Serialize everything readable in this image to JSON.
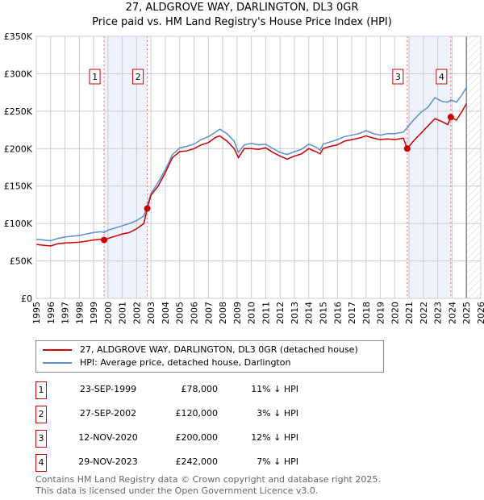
{
  "chart_data": {
    "type": "line",
    "title": "27, ALDGROVE WAY, DARLINGTON, DL3 0GR",
    "subtitle": "Price paid vs. HM Land Registry's House Price Index (HPI)",
    "xlim": [
      1995,
      2026
    ],
    "ylim": [
      0,
      350000
    ],
    "x_ticks": [
      "1995",
      "1996",
      "1997",
      "1998",
      "1999",
      "2000",
      "2001",
      "2002",
      "2003",
      "2004",
      "2005",
      "2006",
      "2007",
      "2008",
      "2009",
      "2010",
      "2011",
      "2012",
      "2013",
      "2014",
      "2015",
      "2016",
      "2017",
      "2018",
      "2019",
      "2020",
      "2021",
      "2022",
      "2023",
      "2024",
      "2025",
      "2026"
    ],
    "y_ticks": [
      {
        "v": 0,
        "l": "£0"
      },
      {
        "v": 50000,
        "l": "£50K"
      },
      {
        "v": 100000,
        "l": "£100K"
      },
      {
        "v": 150000,
        "l": "£150K"
      },
      {
        "v": 200000,
        "l": "£200K"
      },
      {
        "v": 250000,
        "l": "£250K"
      },
      {
        "v": 300000,
        "l": "£300K"
      },
      {
        "v": 350000,
        "l": "£350K"
      }
    ],
    "grid": true,
    "series": [
      {
        "name": "27, ALDGROVE WAY, DARLINGTON, DL3 0GR (detached house)",
        "color": "#cc0000",
        "x": [
          1995,
          1995.5,
          1996,
          1996.5,
          1997,
          1997.5,
          1998,
          1998.5,
          1999,
          1999.5,
          1999.73,
          2000,
          2000.5,
          2001,
          2001.5,
          2002,
          2002.5,
          2002.74,
          2003,
          2003.5,
          2004,
          2004.5,
          2005,
          2005.5,
          2006,
          2006.5,
          2007,
          2007.5,
          2007.8,
          2008.3,
          2008.8,
          2009.1,
          2009.5,
          2010,
          2010.5,
          2011,
          2011.5,
          2012,
          2012.5,
          2013,
          2013.5,
          2014,
          2014.5,
          2014.8,
          2015,
          2015.5,
          2016,
          2016.5,
          2017,
          2017.5,
          2018,
          2018.5,
          2019,
          2019.5,
          2020,
          2020.6,
          2020.87,
          2021.3,
          2021.8,
          2022.3,
          2022.8,
          2023.3,
          2023.7,
          2023.91,
          2024.3,
          2024.7,
          2025
        ],
        "y": [
          72000,
          71000,
          70000,
          73000,
          74000,
          74500,
          75000,
          76500,
          78000,
          79000,
          78000,
          80000,
          83000,
          86000,
          88000,
          93000,
          100000,
          120000,
          138000,
          150000,
          168000,
          188000,
          196000,
          197000,
          200000,
          205000,
          208000,
          215000,
          217000,
          210000,
          200000,
          188000,
          200000,
          200000,
          199000,
          201000,
          195000,
          190000,
          186000,
          190000,
          193000,
          200000,
          196000,
          193000,
          200000,
          203000,
          205000,
          210000,
          212000,
          214000,
          217000,
          214000,
          212000,
          213000,
          212000,
          214000,
          200000,
          210000,
          220000,
          230000,
          240000,
          236000,
          232000,
          242000,
          238000,
          250000,
          260000
        ]
      },
      {
        "name": "HPI: Average price, detached house, Darlington",
        "color": "#5b8fd4",
        "x": [
          1995,
          1995.5,
          1996,
          1996.5,
          1997,
          1997.5,
          1998,
          1998.5,
          1999,
          1999.5,
          1999.73,
          2000,
          2000.5,
          2001,
          2001.5,
          2002,
          2002.5,
          2002.74,
          2003,
          2003.5,
          2004,
          2004.5,
          2005,
          2005.5,
          2006,
          2006.5,
          2007,
          2007.5,
          2007.8,
          2008.3,
          2008.8,
          2009.1,
          2009.5,
          2010,
          2010.5,
          2011,
          2011.5,
          2012,
          2012.5,
          2013,
          2013.5,
          2014,
          2014.5,
          2014.8,
          2015,
          2015.5,
          2016,
          2016.5,
          2017,
          2017.5,
          2018,
          2018.5,
          2019,
          2019.5,
          2020,
          2020.6,
          2020.87,
          2021.3,
          2021.8,
          2022.3,
          2022.8,
          2023.3,
          2023.7,
          2023.91,
          2024.3,
          2024.7,
          2025
        ],
        "y": [
          79000,
          78000,
          77000,
          80000,
          82000,
          83000,
          84000,
          86000,
          88000,
          89000,
          88000,
          91000,
          94000,
          97000,
          100000,
          104000,
          110000,
          124000,
          140000,
          155000,
          172000,
          192000,
          201000,
          203000,
          206000,
          212000,
          216000,
          222000,
          226000,
          220000,
          210000,
          195000,
          205000,
          207000,
          205000,
          206000,
          200000,
          195000,
          192000,
          196000,
          199000,
          206000,
          202000,
          198000,
          206000,
          209000,
          212000,
          216000,
          218000,
          220000,
          224000,
          220000,
          218000,
          220000,
          220000,
          222000,
          228000,
          238000,
          248000,
          255000,
          268000,
          263000,
          262000,
          265000,
          262000,
          272000,
          282000
        ]
      }
    ],
    "sales": [
      {
        "n": "1",
        "x": 1999.73,
        "y": 78000
      },
      {
        "n": "2",
        "x": 2002.74,
        "y": 120000
      },
      {
        "n": "3",
        "x": 2020.87,
        "y": 200000
      },
      {
        "n": "4",
        "x": 2023.91,
        "y": 242000
      }
    ],
    "shaded_ranges": [
      [
        1999.73,
        2002.74
      ],
      [
        2020.87,
        2023.91
      ]
    ],
    "forecast_hatch_from": 2025.0
  },
  "legend": {
    "red": "27, ALDGROVE WAY, DARLINGTON, DL3 0GR (detached house)",
    "blue": "HPI: Average price, detached house, Darlington"
  },
  "table": [
    {
      "n": "1",
      "date": "23-SEP-1999",
      "price": "£78,000",
      "hpi": "11% ↓ HPI"
    },
    {
      "n": "2",
      "date": "27-SEP-2002",
      "price": "£120,000",
      "hpi": "3% ↓ HPI"
    },
    {
      "n": "3",
      "date": "12-NOV-2020",
      "price": "£200,000",
      "hpi": "12% ↓ HPI"
    },
    {
      "n": "4",
      "date": "29-NOV-2023",
      "price": "£242,000",
      "hpi": "7% ↓ HPI"
    }
  ],
  "footer": {
    "line1": "Contains HM Land Registry data © Crown copyright and database right 2025.",
    "line2": "This data is licensed under the Open Government Licence v3.0."
  }
}
